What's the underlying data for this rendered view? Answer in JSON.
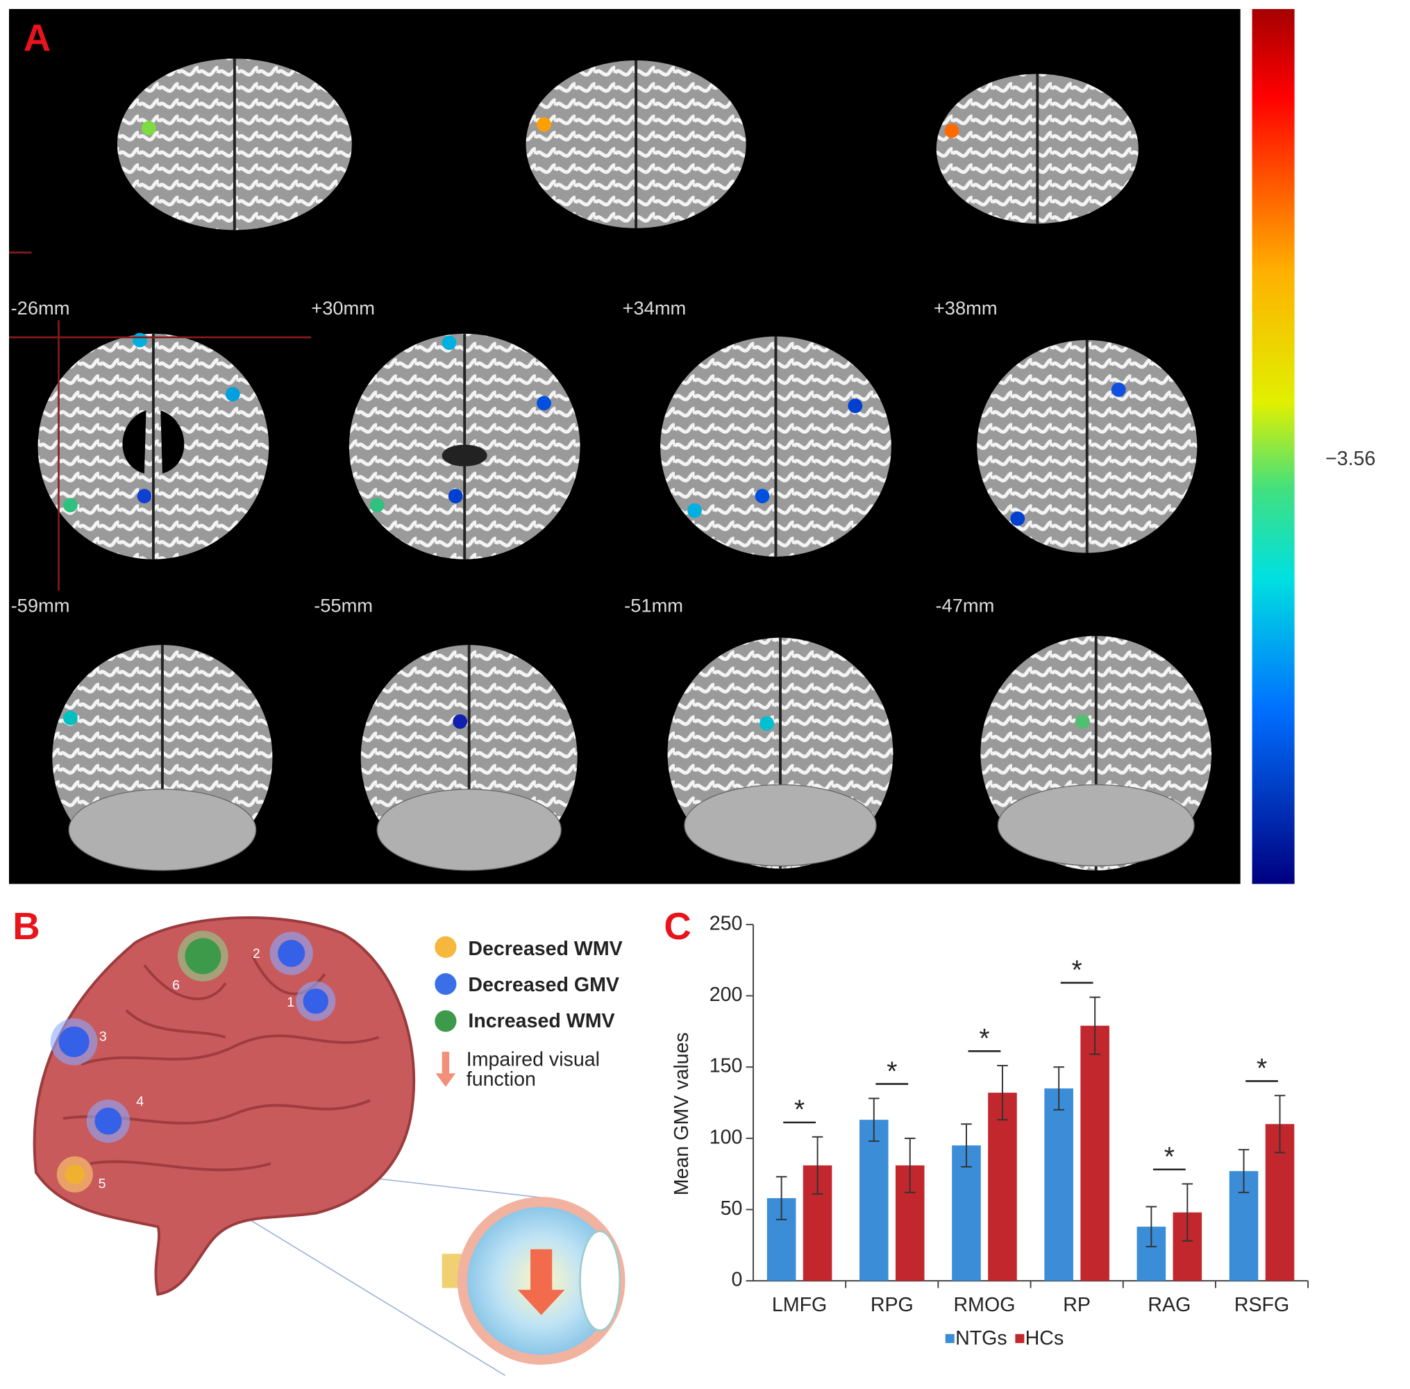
{
  "panel_a": {
    "label": "A",
    "colorbar_label": "−3.56",
    "slice_labels": [
      "-26mm",
      "+30mm",
      "+34mm",
      "+38mm",
      "-59mm",
      "-55mm",
      "-51mm",
      "-47mm"
    ]
  },
  "panel_b": {
    "label": "B",
    "legend": [
      "Decreased WMV",
      "Decreased GMV",
      "Increased WMV"
    ],
    "impaired_function": [
      "Impaired visual",
      "function"
    ],
    "region_numbers": [
      "1",
      "2",
      "3",
      "4",
      "5",
      "6"
    ]
  },
  "chart_data": {
    "type": "bar",
    "panel_label": "C",
    "y_label": "Mean GMV values",
    "categories": [
      "LMFG",
      "RPG",
      "RMOG",
      "RP",
      "RAG",
      "RSFG"
    ],
    "series": [
      {
        "name": "NTGs",
        "color": "#3a8dd6",
        "values": [
          58,
          113,
          95,
          135,
          38,
          77
        ],
        "errors": [
          15,
          15,
          15,
          15,
          14,
          15
        ]
      },
      {
        "name": "HCs",
        "color": "#c1272d",
        "values": [
          81,
          81,
          132,
          179,
          48,
          110
        ],
        "errors": [
          20,
          19,
          19,
          20,
          20,
          20
        ]
      }
    ],
    "significance": [
      "*",
      "*",
      "*",
      "*",
      "*",
      "*"
    ],
    "ylim": [
      0,
      250
    ],
    "yticks": [
      0,
      50,
      100,
      150,
      200,
      250
    ]
  }
}
